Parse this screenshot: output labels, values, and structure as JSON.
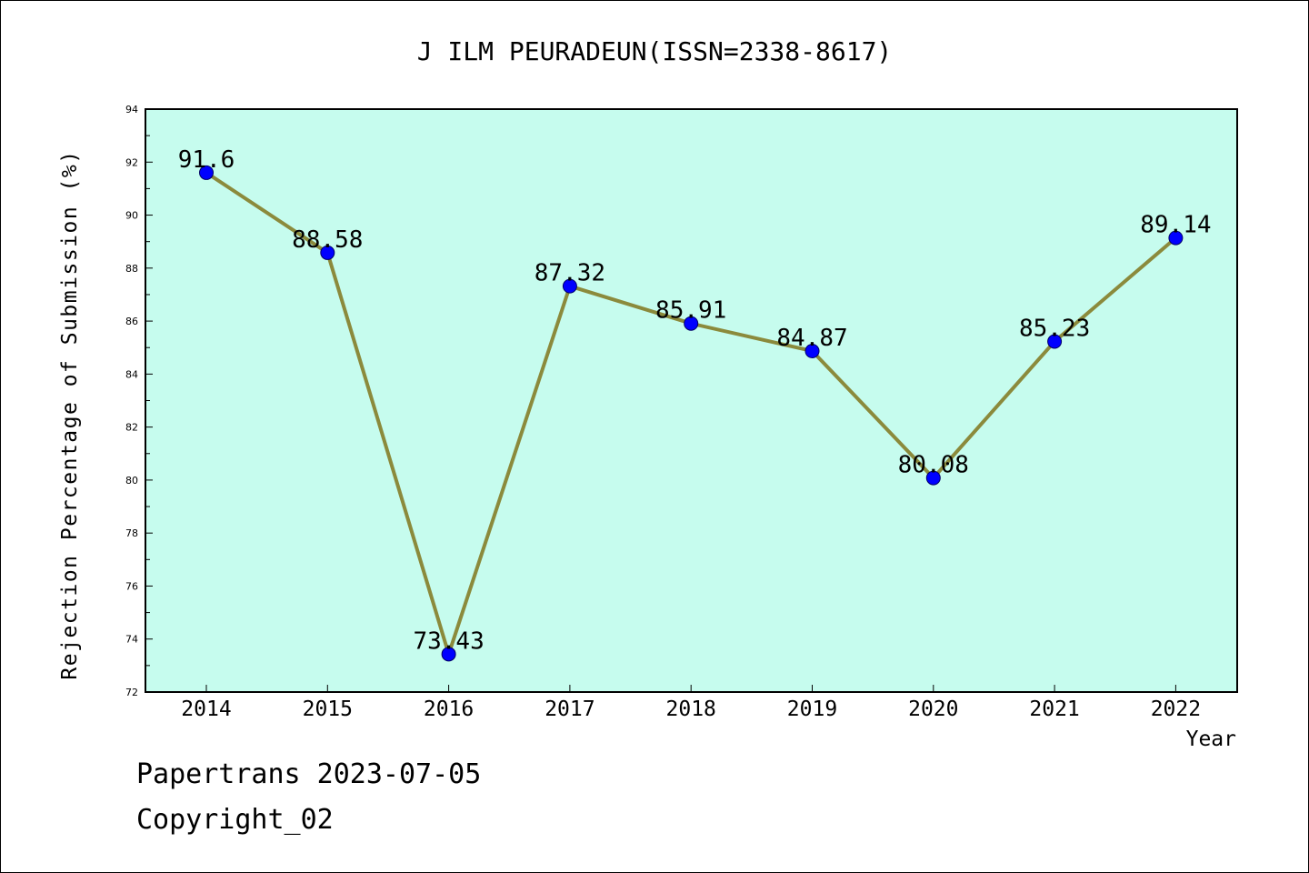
{
  "chart_data": {
    "type": "line",
    "title": "J ILM PEURADEUN(ISSN=2338-8617)",
    "xlabel": "Year",
    "ylabel": "Rejection Percentage of Submission (%)",
    "categories": [
      "2014",
      "2015",
      "2016",
      "2017",
      "2018",
      "2019",
      "2020",
      "2021",
      "2022"
    ],
    "values": [
      91.6,
      88.58,
      73.43,
      87.32,
      85.91,
      84.87,
      80.08,
      85.23,
      89.14
    ],
    "data_labels": [
      "91.6",
      "88.58",
      "73.43",
      "87.32",
      "85.91",
      "84.87",
      "80.08",
      "85.23",
      "89.14"
    ],
    "ylim": [
      72,
      94
    ],
    "yticks": [
      "72",
      "74",
      "76",
      "78",
      "80",
      "82",
      "84",
      "86",
      "88",
      "90",
      "92",
      "94"
    ],
    "grid": false,
    "legend": "none",
    "colors": {
      "plot_background": "#c6fcee",
      "line": "#8b8a3c",
      "marker": "#0000ff",
      "axes": "#000000"
    }
  },
  "footer": {
    "line1": "Papertrans 2023-07-05",
    "line2": "Copyright_02"
  }
}
